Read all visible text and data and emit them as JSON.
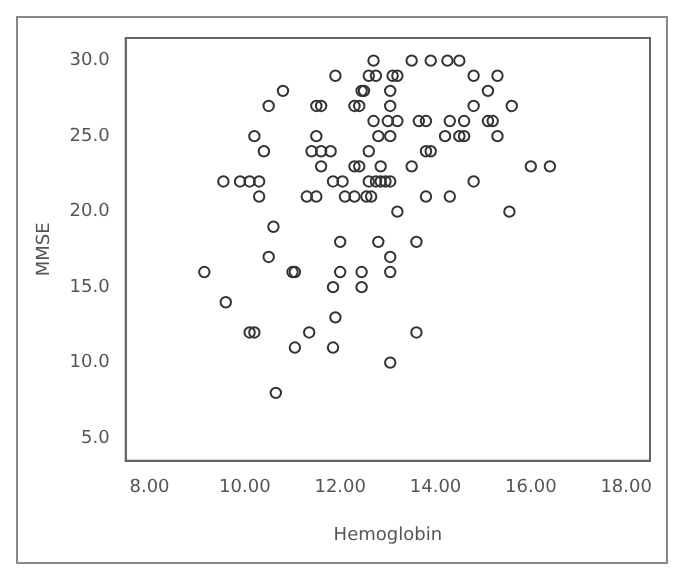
{
  "chart_data": {
    "type": "scatter",
    "xlabel": "Hemoglobin",
    "ylabel": "MMSE",
    "xlim": [
      7.5,
      18.5
    ],
    "ylim": [
      3.5,
      31.5
    ],
    "xticks": [
      {
        "value": 8,
        "label": "8.00"
      },
      {
        "value": 10,
        "label": "10.00"
      },
      {
        "value": 12,
        "label": "12.00"
      },
      {
        "value": 14,
        "label": "14.00"
      },
      {
        "value": 16,
        "label": "16.00"
      },
      {
        "value": 18,
        "label": "18.00"
      }
    ],
    "yticks": [
      {
        "value": 5,
        "label": "5.0"
      },
      {
        "value": 10,
        "label": "10.0"
      },
      {
        "value": 15,
        "label": "15.0"
      },
      {
        "value": 20,
        "label": "20.0"
      },
      {
        "value": 25,
        "label": "25.0"
      },
      {
        "value": 30,
        "label": "30.0"
      }
    ],
    "marker": "circle",
    "grid": false,
    "legend": false,
    "series": [
      {
        "color": "#333333",
        "x": [
          12.7,
          13.5,
          13.9,
          14.25,
          14.5,
          11.9,
          12.6,
          12.75,
          13.1,
          13.2,
          14.8,
          15.3,
          10.8,
          12.45,
          12.5,
          13.05,
          15.1,
          10.5,
          11.5,
          11.6,
          12.3,
          12.4,
          13.05,
          14.8,
          15.6,
          12.7,
          13.0,
          13.2,
          13.65,
          13.8,
          14.3,
          14.6,
          15.1,
          15.2,
          10.2,
          11.5,
          12.8,
          13.05,
          14.2,
          14.5,
          14.6,
          15.3,
          10.4,
          11.4,
          11.6,
          11.8,
          12.6,
          13.8,
          13.9,
          11.6,
          12.3,
          12.4,
          12.85,
          13.5,
          16.0,
          16.4,
          9.55,
          9.9,
          10.1,
          10.3,
          11.85,
          12.05,
          12.6,
          12.75,
          12.85,
          12.95,
          13.05,
          14.8,
          10.3,
          11.3,
          11.5,
          12.1,
          12.3,
          12.55,
          12.65,
          13.8,
          14.3,
          13.2,
          15.55,
          10.6,
          12.0,
          12.8,
          13.6,
          10.5,
          13.05,
          9.15,
          11.0,
          11.05,
          12.0,
          12.45,
          13.05,
          11.85,
          12.45,
          9.6,
          11.9,
          10.1,
          10.2,
          11.35,
          13.6,
          11.05,
          11.85,
          13.05,
          10.65
        ],
        "values": [
          30,
          30,
          30,
          30,
          30,
          29,
          29,
          29,
          29,
          29,
          29,
          29,
          28,
          28,
          28,
          28,
          28,
          27,
          27,
          27,
          27,
          27,
          27,
          27,
          27,
          26,
          26,
          26,
          26,
          26,
          26,
          26,
          26,
          26,
          25,
          25,
          25,
          25,
          25,
          25,
          25,
          25,
          24,
          24,
          24,
          24,
          24,
          24,
          24,
          23,
          23,
          23,
          23,
          23,
          23,
          23,
          22,
          22,
          22,
          22,
          22,
          22,
          22,
          22,
          22,
          22,
          22,
          22,
          21,
          21,
          21,
          21,
          21,
          21,
          21,
          21,
          21,
          20,
          20,
          19,
          18,
          18,
          18,
          17,
          17,
          16,
          16,
          16,
          16,
          16,
          16,
          15,
          15,
          14,
          13,
          12,
          12,
          12,
          12,
          11,
          11,
          10,
          8
        ]
      }
    ]
  }
}
